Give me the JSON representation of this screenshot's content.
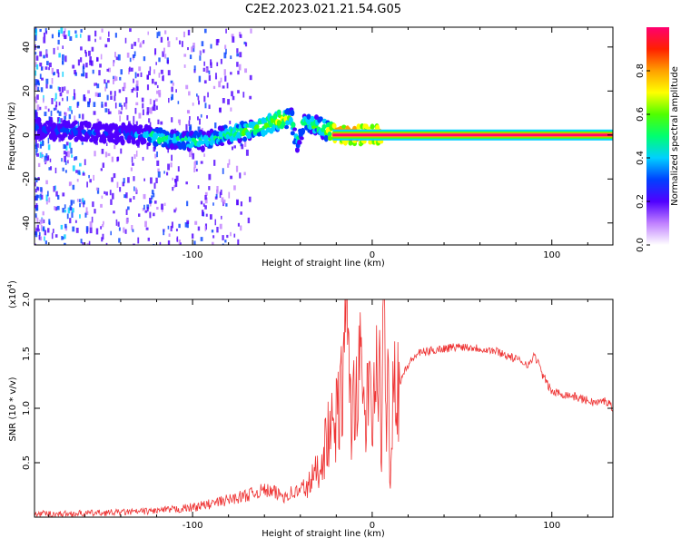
{
  "title": "C2E2.2023.021.21.54.G05",
  "chart_data": [
    {
      "type": "heatmap",
      "xlabel": "Height of straight line (km)",
      "ylabel": "Frequency (Hz)",
      "xlim": [
        -188,
        134
      ],
      "ylim": [
        -50,
        49
      ],
      "xticks": [
        -100,
        0,
        100
      ],
      "yticks": [
        -40,
        -20,
        0,
        20,
        40
      ],
      "colorbar": {
        "label": "Normalized spectral amplitude",
        "range": [
          0,
          1
        ],
        "ticks": [
          "0.0",
          "0.2",
          "0.4",
          "0.6",
          "0.8"
        ],
        "colors": [
          "#ffffff",
          "#c080ff",
          "#5000ff",
          "#0040ff",
          "#00d0ff",
          "#00ff70",
          "#50ff00",
          "#ffff00",
          "#ffa000",
          "#ff2000",
          "#ff0070"
        ]
      },
      "ridge": {
        "x": [
          -188,
          -170,
          -150,
          -130,
          -120,
          -110,
          -100,
          -90,
          -80,
          -70,
          -60,
          -55,
          -50,
          -45,
          -42,
          -38,
          -35,
          -30,
          -25,
          -22,
          -18,
          -10,
          -5,
          0,
          5,
          134
        ],
        "freq": [
          3,
          2,
          1,
          0,
          -1,
          -2,
          -3,
          -2,
          0,
          2,
          4,
          6,
          7,
          8,
          -4,
          6,
          5,
          4,
          2,
          1,
          0,
          0,
          0,
          0,
          0,
          0
        ],
        "amplitude": [
          0.35,
          0.4,
          0.35,
          0.4,
          0.6,
          0.55,
          0.6,
          0.55,
          0.6,
          0.65,
          0.7,
          0.75,
          0.8,
          0.6,
          0.5,
          0.6,
          0.6,
          0.65,
          0.7,
          0.9,
          1.0,
          1.0,
          1.0,
          1.0,
          1.0,
          1.0
        ]
      }
    },
    {
      "type": "line",
      "xlabel": "Height of straight line (km)",
      "ylabel": "SNR (10 * v/v)",
      "yscale_label": "(x10",
      "yscale_exp": "4",
      "xlim": [
        -188,
        134
      ],
      "ylim": [
        0,
        2.0
      ],
      "xticks": [
        -100,
        0,
        100
      ],
      "yticks": [
        "0.5",
        "1.0",
        "1.5",
        "2.0"
      ],
      "color": "#ee3333",
      "series": [
        {
          "x": [
            -188,
            -170,
            -150,
            -130,
            -110,
            -100,
            -90,
            -80,
            -70,
            -60,
            -50,
            -40,
            -35,
            -30,
            -27,
            -25,
            -22,
            -20,
            -18,
            -15,
            -13,
            -12,
            -10,
            -8,
            -6,
            -4,
            -2,
            0,
            2,
            4,
            5,
            6,
            7,
            8,
            9,
            10,
            12,
            14,
            17,
            20,
            25,
            30,
            40,
            50,
            60,
            70,
            80,
            88,
            90,
            92,
            95,
            100,
            110,
            120,
            125,
            130,
            134
          ],
          "y": [
            0.03,
            0.03,
            0.04,
            0.05,
            0.07,
            0.09,
            0.12,
            0.16,
            0.2,
            0.25,
            0.2,
            0.24,
            0.3,
            0.45,
            0.6,
            0.75,
            0.8,
            0.9,
            1.0,
            1.5,
            1.85,
            0.9,
            1.1,
            1.3,
            1.3,
            0.9,
            1.15,
            0.9,
            1.2,
            1.6,
            0.3,
            1.5,
            1.95,
            0.9,
            1.3,
            0.35,
            1.4,
            1.2,
            1.3,
            1.4,
            1.5,
            1.52,
            1.55,
            1.57,
            1.55,
            1.52,
            1.45,
            1.4,
            1.5,
            1.43,
            1.3,
            1.15,
            1.12,
            1.07,
            1.05,
            1.07,
            1.01
          ]
        }
      ]
    }
  ]
}
